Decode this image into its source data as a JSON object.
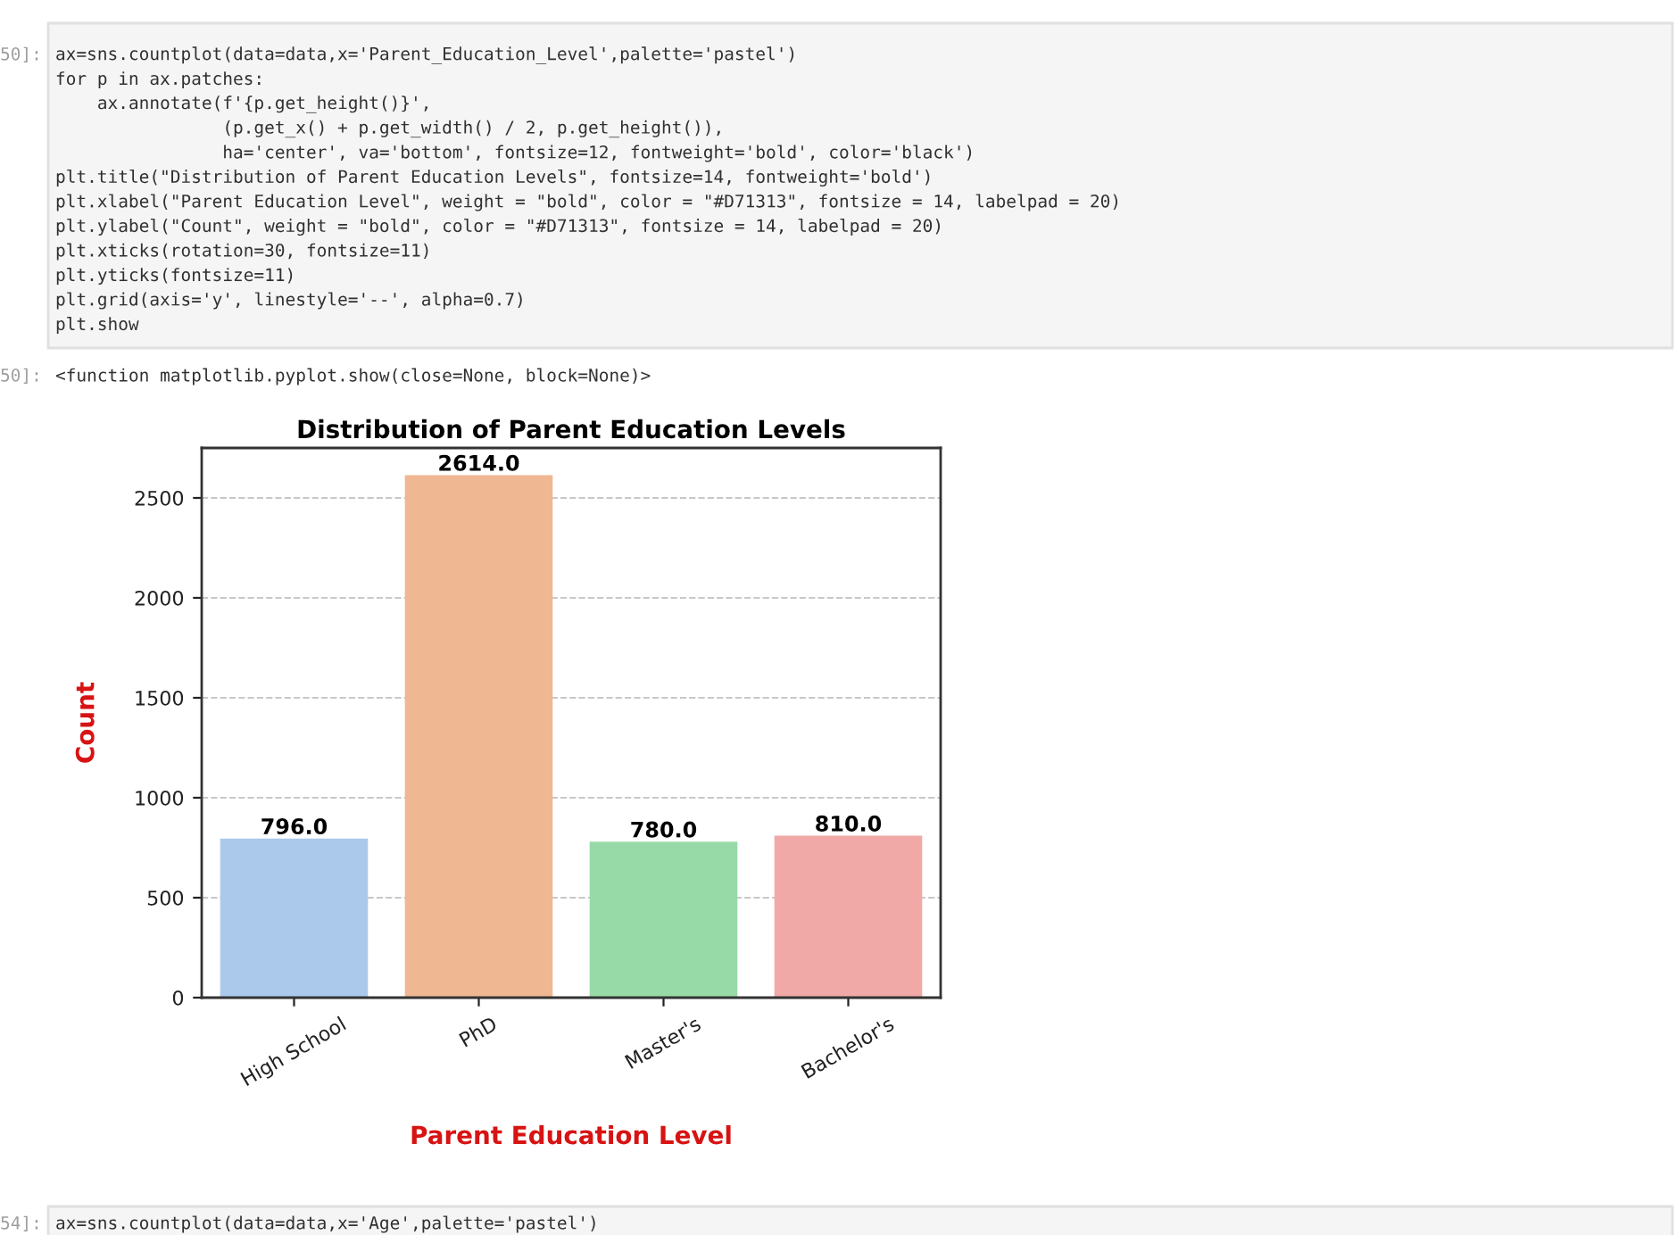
{
  "chart_data": {
    "type": "bar",
    "title": "Distribution of Parent Education Levels",
    "xlabel": "Parent Education Level",
    "ylabel": "Count",
    "categories": [
      "High School",
      "PhD",
      "Master's",
      "Bachelor's"
    ],
    "values": [
      796,
      2614,
      780,
      810
    ],
    "colors": [
      "#abc9ea",
      "#efb792",
      "#98daa7",
      "#f0a9a7"
    ],
    "value_labels": [
      "796.0",
      "2614.0",
      "780.0",
      "810.0"
    ],
    "ylim": [
      0,
      2750
    ],
    "yticks": [
      0,
      500,
      1000,
      1500,
      2000,
      2500
    ],
    "grid": "y",
    "annotations": [
      "50]:",
      "ax=sns.countplot(data=data,x='Parent_Education_Level',palette='pastel')\nfor p in ax.patches:\n    ax.annotate(f'{p.get_height()}',\n                (p.get_x() + p.get_width() / 2, p.get_height()),\n                ha='center', va='bottom', fontsize=12, fontweight='bold', color='black')\nplt.title(\"Distribution of Parent Education Levels\", fontsize=14, fontweight='bold')\nplt.xlabel(\"Parent Education Level\", weight = \"bold\", color = \"#D71313\", fontsize = 14, labelpad = 20)\nplt.ylabel(\"Count\", weight = \"bold\", color = \"#D71313\", fontsize = 14, labelpad = 20)\nplt.xticks(rotation=30, fontsize=11)\nplt.yticks(fontsize=11)\nplt.grid(axis='y', linestyle='--', alpha=0.7)\nplt.show",
      "50]:",
      "<function matplotlib.pyplot.show(close=None, block=None)>",
      "54]:",
      "ax=sns.countplot(data=data,x='Age',palette='pastel')"
    ]
  }
}
